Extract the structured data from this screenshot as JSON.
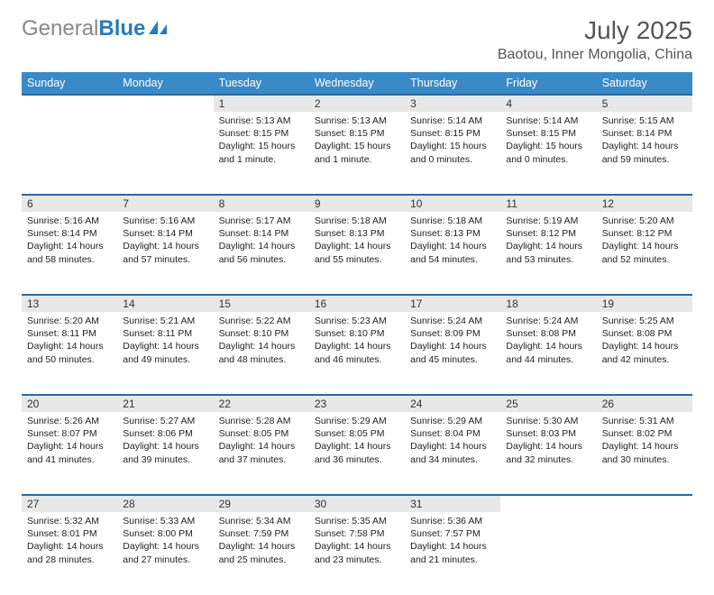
{
  "logo": {
    "part1": "General",
    "part2": "Blue"
  },
  "title": "July 2025",
  "location": "Baotou, Inner Mongolia, China",
  "colors": {
    "header_bg": "#3a8ac8",
    "header_text": "#ffffff",
    "daynum_bg": "#e8e8e8",
    "daynum_border": "#2a6aa0",
    "body_text": "#222222",
    "title_text": "#555555",
    "logo_gray": "#888888",
    "logo_blue": "#2a7ab8"
  },
  "days_of_week": [
    "Sunday",
    "Monday",
    "Tuesday",
    "Wednesday",
    "Thursday",
    "Friday",
    "Saturday"
  ],
  "weeks": [
    [
      null,
      null,
      {
        "n": "1",
        "sr": "Sunrise: 5:13 AM",
        "ss": "Sunset: 8:15 PM",
        "dl": "Daylight: 15 hours and 1 minute."
      },
      {
        "n": "2",
        "sr": "Sunrise: 5:13 AM",
        "ss": "Sunset: 8:15 PM",
        "dl": "Daylight: 15 hours and 1 minute."
      },
      {
        "n": "3",
        "sr": "Sunrise: 5:14 AM",
        "ss": "Sunset: 8:15 PM",
        "dl": "Daylight: 15 hours and 0 minutes."
      },
      {
        "n": "4",
        "sr": "Sunrise: 5:14 AM",
        "ss": "Sunset: 8:15 PM",
        "dl": "Daylight: 15 hours and 0 minutes."
      },
      {
        "n": "5",
        "sr": "Sunrise: 5:15 AM",
        "ss": "Sunset: 8:14 PM",
        "dl": "Daylight: 14 hours and 59 minutes."
      }
    ],
    [
      {
        "n": "6",
        "sr": "Sunrise: 5:16 AM",
        "ss": "Sunset: 8:14 PM",
        "dl": "Daylight: 14 hours and 58 minutes."
      },
      {
        "n": "7",
        "sr": "Sunrise: 5:16 AM",
        "ss": "Sunset: 8:14 PM",
        "dl": "Daylight: 14 hours and 57 minutes."
      },
      {
        "n": "8",
        "sr": "Sunrise: 5:17 AM",
        "ss": "Sunset: 8:14 PM",
        "dl": "Daylight: 14 hours and 56 minutes."
      },
      {
        "n": "9",
        "sr": "Sunrise: 5:18 AM",
        "ss": "Sunset: 8:13 PM",
        "dl": "Daylight: 14 hours and 55 minutes."
      },
      {
        "n": "10",
        "sr": "Sunrise: 5:18 AM",
        "ss": "Sunset: 8:13 PM",
        "dl": "Daylight: 14 hours and 54 minutes."
      },
      {
        "n": "11",
        "sr": "Sunrise: 5:19 AM",
        "ss": "Sunset: 8:12 PM",
        "dl": "Daylight: 14 hours and 53 minutes."
      },
      {
        "n": "12",
        "sr": "Sunrise: 5:20 AM",
        "ss": "Sunset: 8:12 PM",
        "dl": "Daylight: 14 hours and 52 minutes."
      }
    ],
    [
      {
        "n": "13",
        "sr": "Sunrise: 5:20 AM",
        "ss": "Sunset: 8:11 PM",
        "dl": "Daylight: 14 hours and 50 minutes."
      },
      {
        "n": "14",
        "sr": "Sunrise: 5:21 AM",
        "ss": "Sunset: 8:11 PM",
        "dl": "Daylight: 14 hours and 49 minutes."
      },
      {
        "n": "15",
        "sr": "Sunrise: 5:22 AM",
        "ss": "Sunset: 8:10 PM",
        "dl": "Daylight: 14 hours and 48 minutes."
      },
      {
        "n": "16",
        "sr": "Sunrise: 5:23 AM",
        "ss": "Sunset: 8:10 PM",
        "dl": "Daylight: 14 hours and 46 minutes."
      },
      {
        "n": "17",
        "sr": "Sunrise: 5:24 AM",
        "ss": "Sunset: 8:09 PM",
        "dl": "Daylight: 14 hours and 45 minutes."
      },
      {
        "n": "18",
        "sr": "Sunrise: 5:24 AM",
        "ss": "Sunset: 8:08 PM",
        "dl": "Daylight: 14 hours and 44 minutes."
      },
      {
        "n": "19",
        "sr": "Sunrise: 5:25 AM",
        "ss": "Sunset: 8:08 PM",
        "dl": "Daylight: 14 hours and 42 minutes."
      }
    ],
    [
      {
        "n": "20",
        "sr": "Sunrise: 5:26 AM",
        "ss": "Sunset: 8:07 PM",
        "dl": "Daylight: 14 hours and 41 minutes."
      },
      {
        "n": "21",
        "sr": "Sunrise: 5:27 AM",
        "ss": "Sunset: 8:06 PM",
        "dl": "Daylight: 14 hours and 39 minutes."
      },
      {
        "n": "22",
        "sr": "Sunrise: 5:28 AM",
        "ss": "Sunset: 8:05 PM",
        "dl": "Daylight: 14 hours and 37 minutes."
      },
      {
        "n": "23",
        "sr": "Sunrise: 5:29 AM",
        "ss": "Sunset: 8:05 PM",
        "dl": "Daylight: 14 hours and 36 minutes."
      },
      {
        "n": "24",
        "sr": "Sunrise: 5:29 AM",
        "ss": "Sunset: 8:04 PM",
        "dl": "Daylight: 14 hours and 34 minutes."
      },
      {
        "n": "25",
        "sr": "Sunrise: 5:30 AM",
        "ss": "Sunset: 8:03 PM",
        "dl": "Daylight: 14 hours and 32 minutes."
      },
      {
        "n": "26",
        "sr": "Sunrise: 5:31 AM",
        "ss": "Sunset: 8:02 PM",
        "dl": "Daylight: 14 hours and 30 minutes."
      }
    ],
    [
      {
        "n": "27",
        "sr": "Sunrise: 5:32 AM",
        "ss": "Sunset: 8:01 PM",
        "dl": "Daylight: 14 hours and 28 minutes."
      },
      {
        "n": "28",
        "sr": "Sunrise: 5:33 AM",
        "ss": "Sunset: 8:00 PM",
        "dl": "Daylight: 14 hours and 27 minutes."
      },
      {
        "n": "29",
        "sr": "Sunrise: 5:34 AM",
        "ss": "Sunset: 7:59 PM",
        "dl": "Daylight: 14 hours and 25 minutes."
      },
      {
        "n": "30",
        "sr": "Sunrise: 5:35 AM",
        "ss": "Sunset: 7:58 PM",
        "dl": "Daylight: 14 hours and 23 minutes."
      },
      {
        "n": "31",
        "sr": "Sunrise: 5:36 AM",
        "ss": "Sunset: 7:57 PM",
        "dl": "Daylight: 14 hours and 21 minutes."
      },
      null,
      null
    ]
  ]
}
